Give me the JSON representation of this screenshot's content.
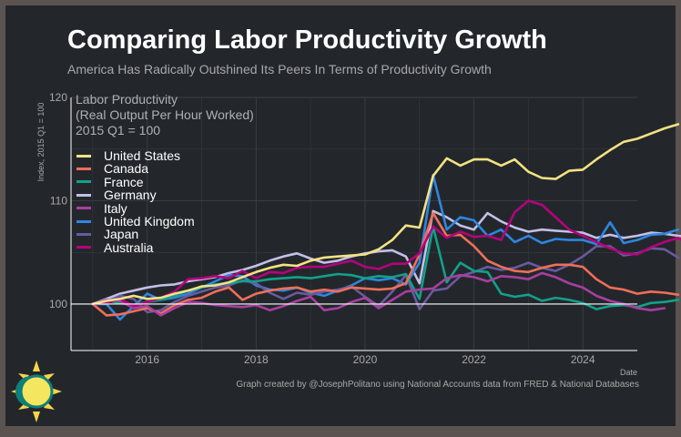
{
  "title": "Comparing Labor Productivity Growth",
  "subtitle": "America Has Radically Outshined Its Peers In Terms of Productivity Growth",
  "caption": "Graph created by @JosephPolitano using National Accounts data from FRED & National Databases",
  "logo_icon": "sun-icon",
  "colors": {
    "background": "#23272c",
    "frame": "#5a5350",
    "grid": "#3a3f46",
    "axis_text": "#a8a8a8",
    "baseline": "#ffffff"
  },
  "chart_data": {
    "type": "line",
    "title": [
      "Labor Productivity",
      "(Real Output Per Hour Worked)",
      "2015 Q1 = 100"
    ],
    "xlabel": "Date",
    "ylabel": "Index, 2015 Q1 = 100",
    "xlim": [
      2014.6,
      2025.0
    ],
    "ylim": [
      95.5,
      120
    ],
    "x_ticks": [
      {
        "v": 2016,
        "label": "2016"
      },
      {
        "v": 2018,
        "label": "2018"
      },
      {
        "v": 2020,
        "label": "2020"
      },
      {
        "v": 2022,
        "label": "2022"
      },
      {
        "v": 2024,
        "label": "2024"
      }
    ],
    "y_ticks": [
      {
        "v": 100,
        "label": "100"
      },
      {
        "v": 110,
        "label": "110"
      },
      {
        "v": 120,
        "label": "120"
      }
    ],
    "reference_line": 100,
    "grid": true,
    "legend_position": "top-left",
    "x_start": 2015.0,
    "x_step": 0.25,
    "series": [
      {
        "name": "Germany",
        "color": "#c3c0e6",
        "values": [
          100.0,
          100.5,
          101.0,
          101.3,
          101.6,
          101.8,
          101.9,
          102.2,
          102.4,
          102.6,
          103.0,
          103.3,
          103.7,
          104.2,
          104.6,
          104.9,
          104.4,
          104.0,
          104.2,
          104.6,
          104.9,
          105.1,
          105.2,
          104.6,
          102.0,
          109.0,
          108.4,
          107.6,
          107.2,
          108.8,
          108.0,
          107.4,
          107.0,
          107.2,
          107.1,
          107.0,
          106.9,
          106.4,
          106.7,
          106.4,
          106.6,
          106.9,
          106.8,
          106.6,
          106.5
        ]
      },
      {
        "name": "United Kingdom",
        "color": "#2e86e0",
        "values": [
          100.0,
          100.0,
          98.5,
          99.8,
          101.0,
          100.4,
          100.6,
          101.0,
          101.6,
          102.2,
          102.8,
          102.7,
          101.8,
          101.4,
          101.3,
          101.6,
          101.1,
          100.8,
          101.3,
          101.8,
          102.5,
          102.3,
          102.5,
          101.9,
          104.0,
          112.5,
          107.2,
          108.4,
          108.1,
          106.6,
          107.2,
          106.0,
          106.6,
          105.9,
          106.3,
          106.2,
          106.2,
          105.8,
          107.9,
          105.9,
          106.2,
          106.7,
          106.8,
          107.2
        ]
      },
      {
        "name": "Japan",
        "color": "#6a5a9e",
        "values": [
          100.0,
          100.2,
          100.8,
          100.5,
          99.2,
          99.4,
          100.2,
          100.8,
          101.2,
          101.6,
          101.8,
          102.3,
          102.0,
          101.1,
          100.5,
          101.1,
          100.9,
          101.2,
          101.4,
          101.7,
          100.7,
          99.8,
          101.2,
          102.8,
          99.5,
          101.3,
          101.5,
          102.7,
          103.1,
          103.6,
          103.3,
          103.5,
          104.0,
          103.5,
          103.2,
          103.8,
          104.6,
          105.6,
          105.6,
          104.7,
          104.9,
          105.4,
          105.3,
          104.5
        ]
      },
      {
        "name": "France",
        "color": "#13a08a",
        "values": [
          100.0,
          100.3,
          100.1,
          99.9,
          100.2,
          100.4,
          100.8,
          101.3,
          101.6,
          101.9,
          102.0,
          102.2,
          102.2,
          102.4,
          102.5,
          102.6,
          102.5,
          102.7,
          102.9,
          102.8,
          102.5,
          102.7,
          102.6,
          102.9,
          100.5,
          107.5,
          102.1,
          104.0,
          103.2,
          103.1,
          101.0,
          100.7,
          100.9,
          100.3,
          100.6,
          100.4,
          100.1,
          99.5,
          99.8,
          99.9,
          99.7,
          100.1,
          100.2,
          100.4
        ]
      },
      {
        "name": "Canada",
        "color": "#ef6f58",
        "values": [
          100.0,
          98.9,
          99.0,
          99.3,
          99.6,
          99.1,
          99.9,
          100.4,
          100.6,
          101.2,
          101.6,
          100.4,
          101.0,
          101.3,
          101.5,
          101.6,
          101.2,
          101.4,
          101.2,
          101.6,
          101.5,
          101.4,
          101.5,
          102.0,
          104.8,
          108.8,
          106.6,
          106.7,
          105.6,
          104.2,
          103.6,
          103.2,
          103.1,
          103.5,
          103.8,
          103.8,
          103.6,
          102.4,
          101.6,
          101.4,
          101.0,
          101.2,
          101.1,
          100.9
        ]
      },
      {
        "name": "Italy",
        "color": "#a83fa0",
        "values": [
          100.0,
          100.4,
          100.3,
          99.6,
          99.8,
          98.9,
          99.6,
          100.2,
          100.1,
          99.9,
          99.8,
          99.7,
          99.9,
          99.4,
          99.8,
          100.3,
          100.7,
          99.4,
          99.6,
          100.2,
          100.6,
          99.6,
          100.4,
          101.2,
          101.4,
          101.5,
          102.5,
          102.8,
          102.6,
          102.2,
          102.7,
          102.6,
          102.4,
          103.0,
          102.6,
          102.0,
          101.6,
          100.8,
          100.3,
          100.0,
          99.6,
          99.4,
          99.6
        ]
      },
      {
        "name": "Australia",
        "color": "#b3047c",
        "values": [
          100.0,
          100.1,
          100.5,
          99.8,
          100.2,
          100.6,
          101.2,
          102.4,
          102.5,
          102.7,
          102.5,
          103.2,
          102.5,
          103.1,
          103.0,
          103.5,
          103.6,
          103.6,
          103.9,
          104.2,
          103.6,
          103.4,
          103.9,
          103.9,
          104.9,
          107.5,
          106.4,
          107.0,
          106.5,
          106.6,
          106.2,
          108.9,
          110.0,
          109.6,
          108.4,
          107.2,
          106.6,
          106.0,
          105.4,
          104.9,
          104.8,
          105.5,
          106.0,
          106.4,
          105.7
        ]
      },
      {
        "name": "United States",
        "color": "#f4e283",
        "values": [
          100.0,
          100.3,
          100.5,
          100.8,
          100.5,
          100.6,
          101.0,
          101.3,
          101.7,
          101.8,
          102.1,
          102.6,
          103.1,
          103.5,
          103.8,
          103.7,
          104.2,
          104.5,
          104.6,
          104.7,
          104.8,
          105.3,
          106.2,
          107.6,
          107.4,
          112.4,
          114.1,
          113.4,
          114.0,
          114.0,
          113.4,
          114.0,
          112.8,
          112.2,
          112.1,
          112.9,
          113.0,
          114.0,
          114.9,
          115.7,
          116.0,
          116.5,
          117.0,
          117.4
        ]
      }
    ]
  }
}
